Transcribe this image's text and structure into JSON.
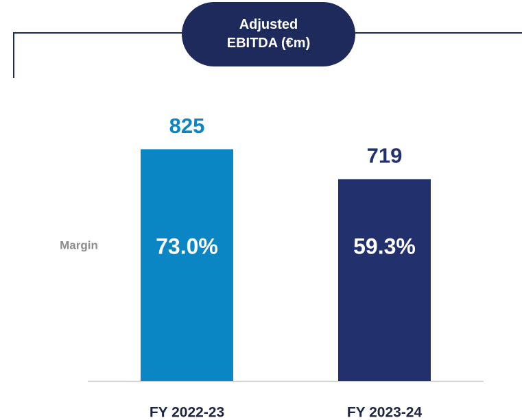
{
  "chart_data": {
    "type": "bar",
    "title": "Adjusted EBITDA (€m)",
    "categories": [
      "FY 2022-23",
      "FY 2023-24"
    ],
    "values": [
      825,
      719
    ],
    "colors": [
      "#0a86c4",
      "#23306e"
    ],
    "margin_label": "Margin",
    "margins": {
      "values": [
        73.0,
        59.3
      ],
      "value_labels": [
        "73.0%",
        "59.3%"
      ]
    }
  }
}
